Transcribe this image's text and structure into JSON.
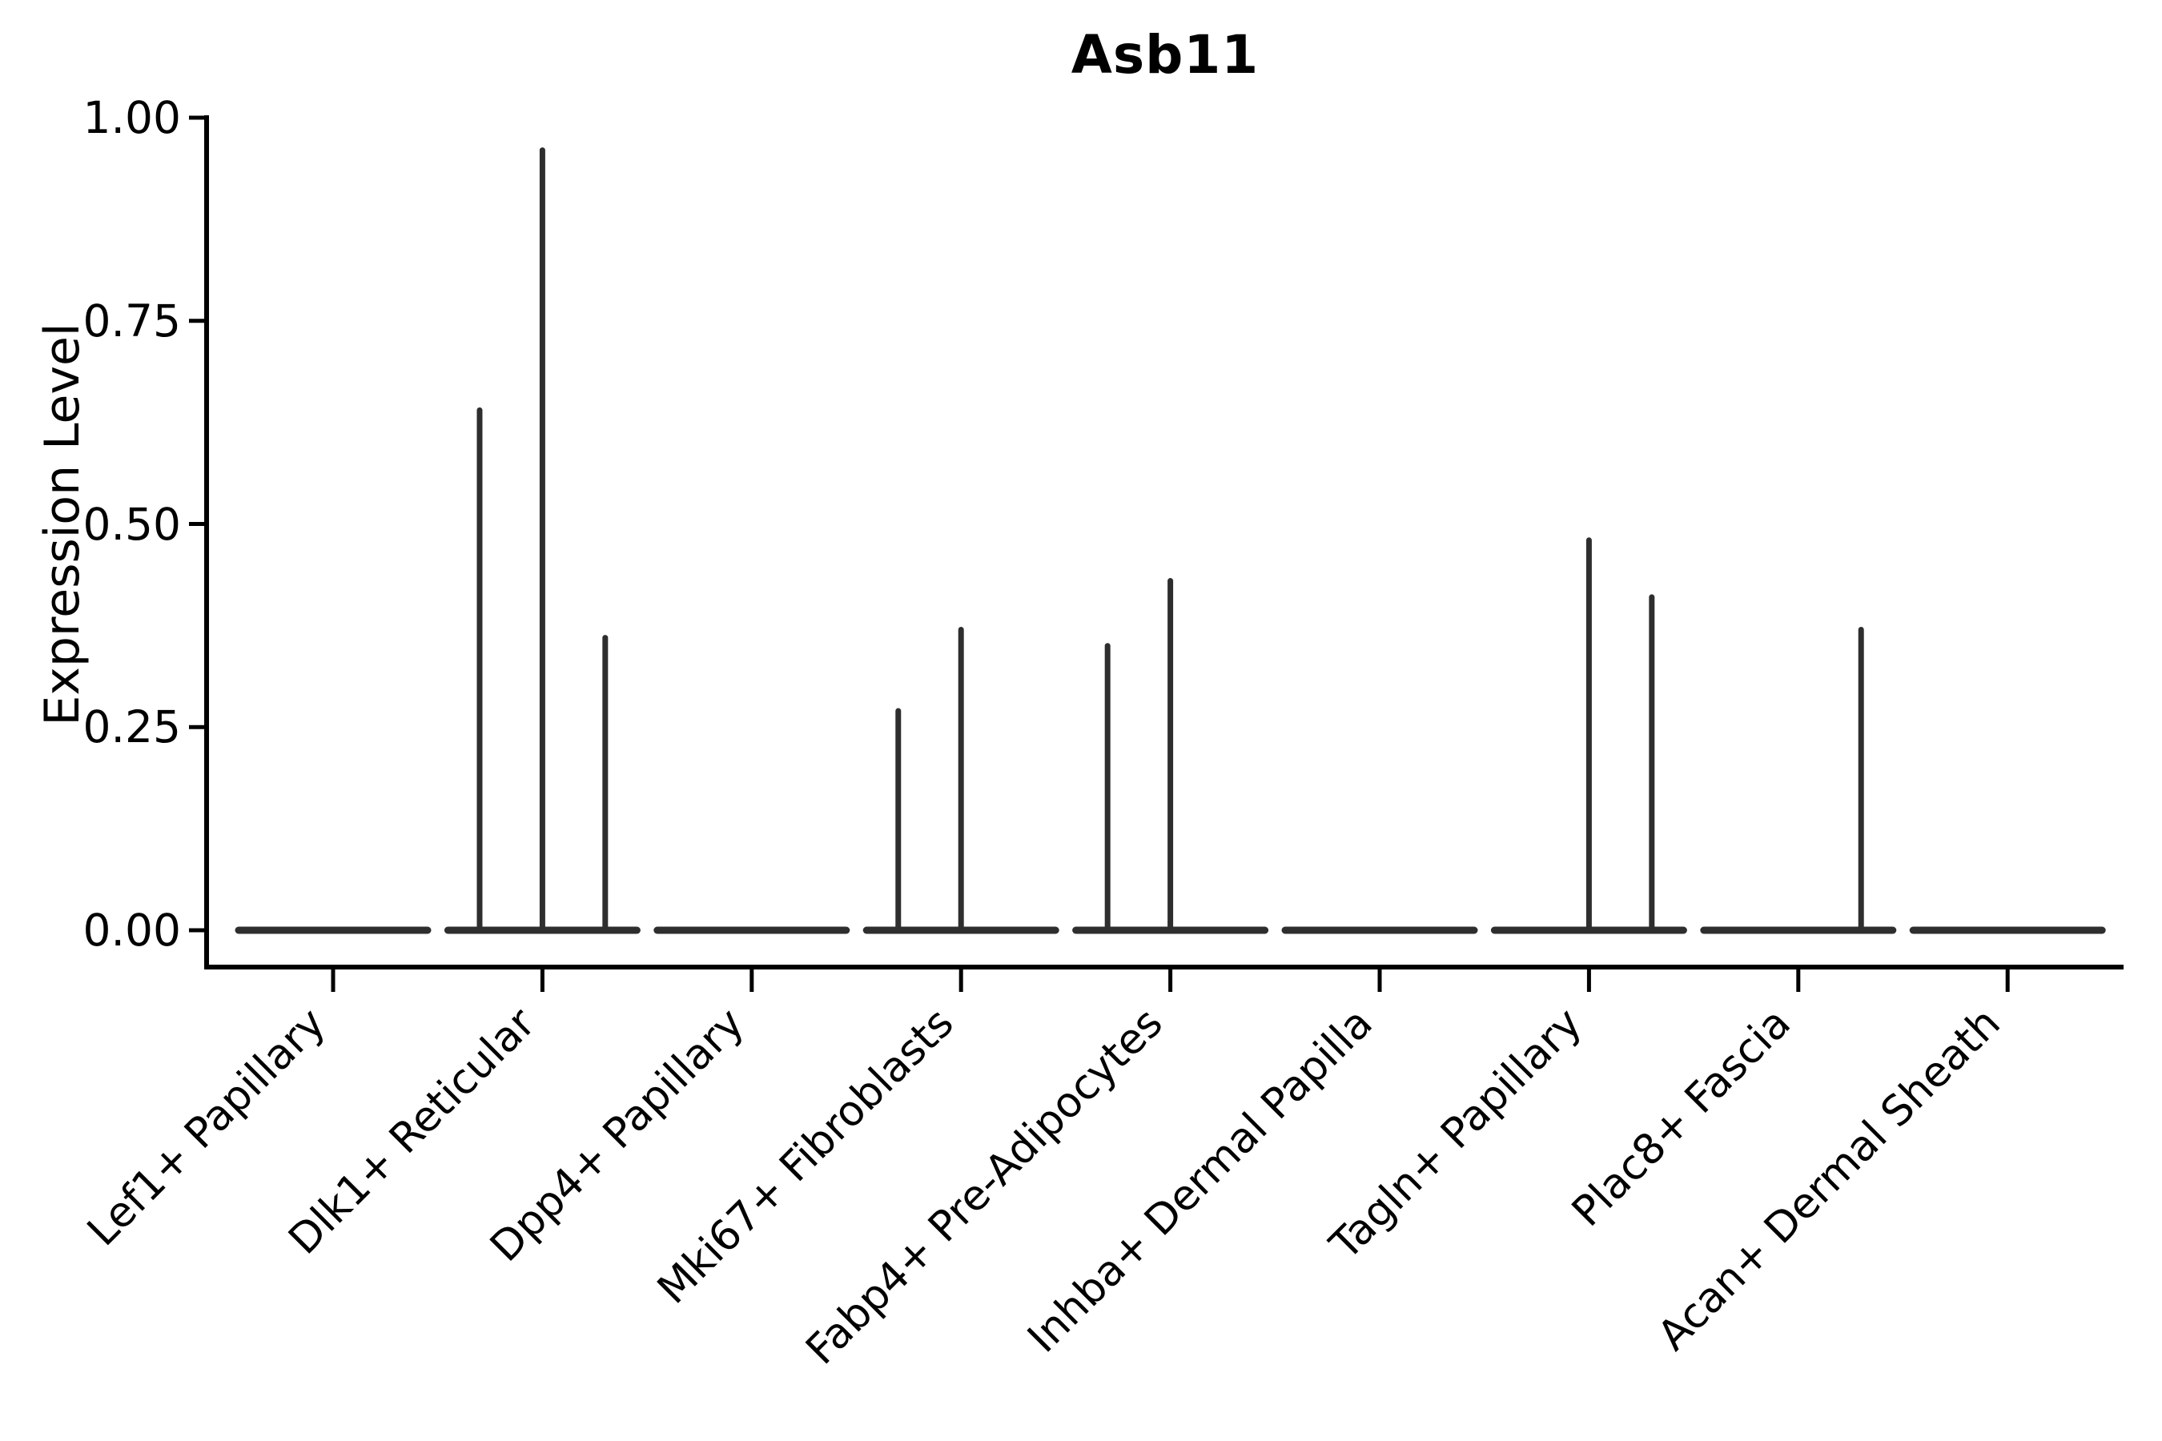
{
  "title": "Asb11",
  "ylabel": "Expression Level",
  "colors": {
    "violin_line": "#2e2e2e",
    "axis": "#000000",
    "text": "#000000",
    "background": "#ffffff"
  },
  "chart_data": {
    "type": "violin",
    "title": "Asb11",
    "xlabel": "",
    "ylabel": "Expression Level",
    "ylim": [
      0,
      1
    ],
    "yticks": [
      0,
      0.25,
      0.5,
      0.75,
      1.0
    ],
    "ytick_labels": [
      "0.00",
      "0.25",
      "0.50",
      "0.75",
      "1.00"
    ],
    "grid": false,
    "legend_position": "none",
    "x_tick_rotation_deg": 45,
    "categories": [
      "Lef1+ Papillary",
      "Dlk1+ Reticular",
      "Dpp4+ Papillary",
      "Mki67+ Fibroblasts",
      "Fabp4+ Pre-Adipocytes",
      "Inhba+ Dermal Papilla",
      "Tagln+ Papillary",
      "Plac8+ Fascia",
      "Acan+ Dermal Sheath"
    ],
    "series": [
      {
        "name": "Lef1+ Papillary",
        "baseline_value": 0,
        "spikes": []
      },
      {
        "name": "Dlk1+ Reticular",
        "baseline_value": 0,
        "spikes": [
          {
            "offset": -0.3,
            "value": 0.64
          },
          {
            "offset": 0.0,
            "value": 0.96
          },
          {
            "offset": 0.3,
            "value": 0.36
          }
        ]
      },
      {
        "name": "Dpp4+ Papillary",
        "baseline_value": 0,
        "spikes": []
      },
      {
        "name": "Mki67+ Fibroblasts",
        "baseline_value": 0,
        "spikes": [
          {
            "offset": -0.3,
            "value": 0.27
          },
          {
            "offset": 0.0,
            "value": 0.37
          }
        ]
      },
      {
        "name": "Fabp4+ Pre-Adipocytes",
        "baseline_value": 0,
        "spikes": [
          {
            "offset": -0.3,
            "value": 0.35
          },
          {
            "offset": 0.0,
            "value": 0.43
          }
        ]
      },
      {
        "name": "Inhba+ Dermal Papilla",
        "baseline_value": 0,
        "spikes": []
      },
      {
        "name": "Tagln+ Papillary",
        "baseline_value": 0,
        "spikes": [
          {
            "offset": 0.0,
            "value": 0.48
          },
          {
            "offset": 0.3,
            "value": 0.41
          }
        ]
      },
      {
        "name": "Plac8+ Fascia",
        "baseline_value": 0,
        "spikes": [
          {
            "offset": 0.3,
            "value": 0.37
          }
        ]
      },
      {
        "name": "Acan+ Dermal Sheath",
        "baseline_value": 0,
        "spikes": []
      }
    ]
  }
}
